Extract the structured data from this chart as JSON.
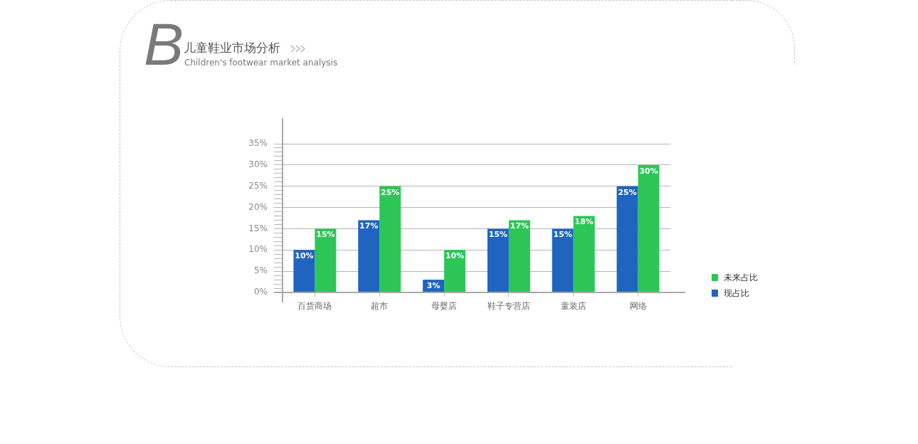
{
  "chart_data": {
    "type": "bar",
    "title": "儿童鞋业市场分析",
    "subtitle": "Children's footwear market analysis",
    "annotations": [
      "B"
    ],
    "categories": [
      "百货商场",
      "超市",
      "母婴店",
      "鞋子专营店",
      "童装店",
      "网络"
    ],
    "series": [
      {
        "name": "现占比",
        "color": "#1f65bf",
        "values": [
          10,
          17,
          3,
          15,
          15,
          25
        ],
        "value_labels": [
          "10%",
          "17%",
          "3%",
          "15%",
          "15%",
          "25%"
        ]
      },
      {
        "name": "未来占比",
        "color": "#2cc657",
        "values": [
          15,
          25,
          10,
          17,
          18,
          30
        ],
        "value_labels": [
          "15%",
          "25%",
          "10%",
          "17%",
          "18%",
          "30%"
        ]
      }
    ],
    "ylim": [
      0,
      41
    ],
    "yticks": [
      {
        "value": 0,
        "label": "0%"
      },
      {
        "value": 1,
        "label": null
      },
      {
        "value": 2,
        "label": null
      },
      {
        "value": 3,
        "label": null
      },
      {
        "value": 4,
        "label": null
      },
      {
        "value": 5,
        "label": "5%"
      },
      {
        "value": 6,
        "label": null
      },
      {
        "value": 7,
        "label": null
      },
      {
        "value": 8,
        "label": null
      },
      {
        "value": 9,
        "label": null
      },
      {
        "value": 10,
        "label": "10%"
      },
      {
        "value": 11,
        "label": null
      },
      {
        "value": 12,
        "label": null
      },
      {
        "value": 13,
        "label": null
      },
      {
        "value": 14,
        "label": null
      },
      {
        "value": 15,
        "label": "15%"
      },
      {
        "value": 16,
        "label": null
      },
      {
        "value": 17,
        "label": null
      },
      {
        "value": 18,
        "label": null
      },
      {
        "value": 19,
        "label": null
      },
      {
        "value": 20,
        "label": "20%"
      },
      {
        "value": 21,
        "label": null
      },
      {
        "value": 22,
        "label": null
      },
      {
        "value": 23,
        "label": null
      },
      {
        "value": 24,
        "label": null
      },
      {
        "value": 25,
        "label": "25%"
      },
      {
        "value": 26,
        "label": null
      },
      {
        "value": 27,
        "label": null
      },
      {
        "value": 28,
        "label": null
      },
      {
        "value": 29,
        "label": null
      },
      {
        "value": 30,
        "label": "30%"
      },
      {
        "value": 31,
        "label": null
      },
      {
        "value": 32,
        "label": null
      },
      {
        "value": 33,
        "label": null
      },
      {
        "value": 34,
        "label": null
      },
      {
        "value": 35,
        "label": "35%"
      }
    ],
    "grid": "y",
    "legend": "right"
  }
}
